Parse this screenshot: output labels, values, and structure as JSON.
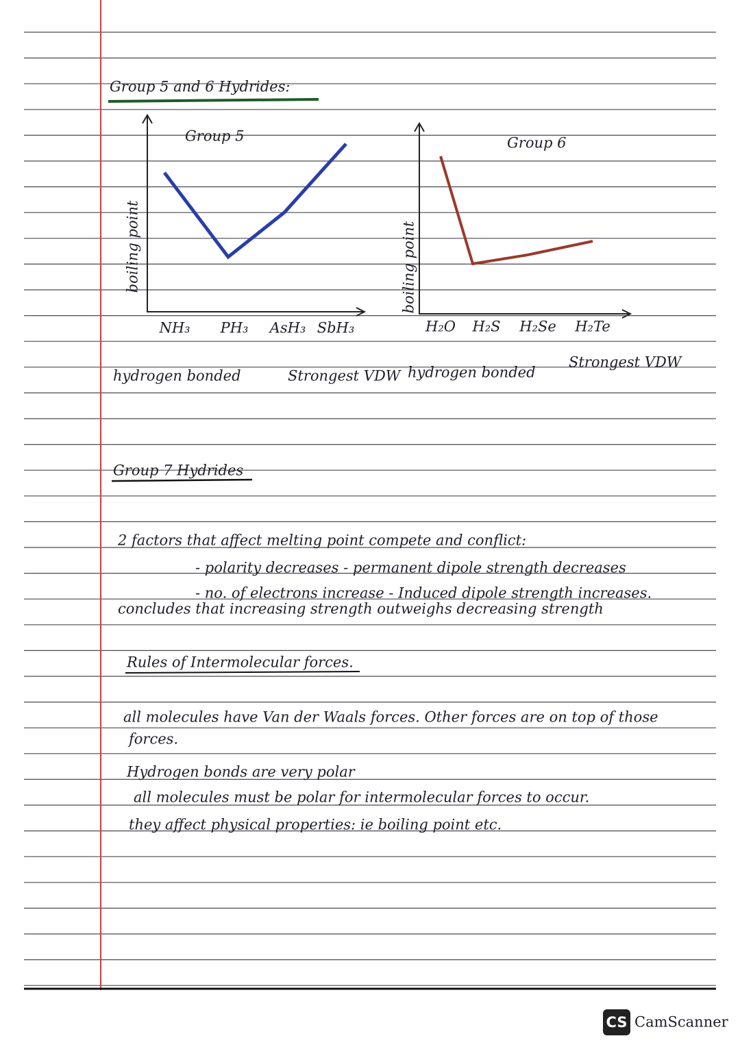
{
  "header": {
    "title": "Group 5 and 6 Hydrides:"
  },
  "graphs": [
    {
      "title": "Group 5",
      "y_label": "boiling point",
      "categories": [
        "NH₃",
        "PH₃",
        "AsH₃",
        "SbH₃"
      ],
      "annotations": [
        "hydrogen bonded",
        "Strongest VDW"
      ]
    },
    {
      "title": "Group 6",
      "y_label": "boiling point",
      "categories": [
        "H₂O",
        "H₂S",
        "H₂Se",
        "H₂Te"
      ],
      "annotations": [
        "hydrogen bonded",
        "Strongest VDW"
      ]
    }
  ],
  "group7": {
    "title": "Group 7 Hydrides",
    "lines": [
      "2 factors that affect melting point compete and conflict:",
      "- polarity decreases - permanent dipole strength decreases",
      "- no. of electrons increase - Induced dipole strength increases.",
      "concludes that increasing strength outweighs decreasing strength"
    ]
  },
  "rules": {
    "title": "Rules of Intermolecular forces.",
    "bullets": [
      "all molecules have Van der Waals forces. Other forces are on top of those",
      "forces.",
      "Hydrogen bonds are very polar",
      "all molecules must be polar for intermolecular forces to occur.",
      "they affect physical properties: ie boiling point etc."
    ]
  },
  "footer": {
    "logo": "CS",
    "brand": "CamScanner"
  }
}
